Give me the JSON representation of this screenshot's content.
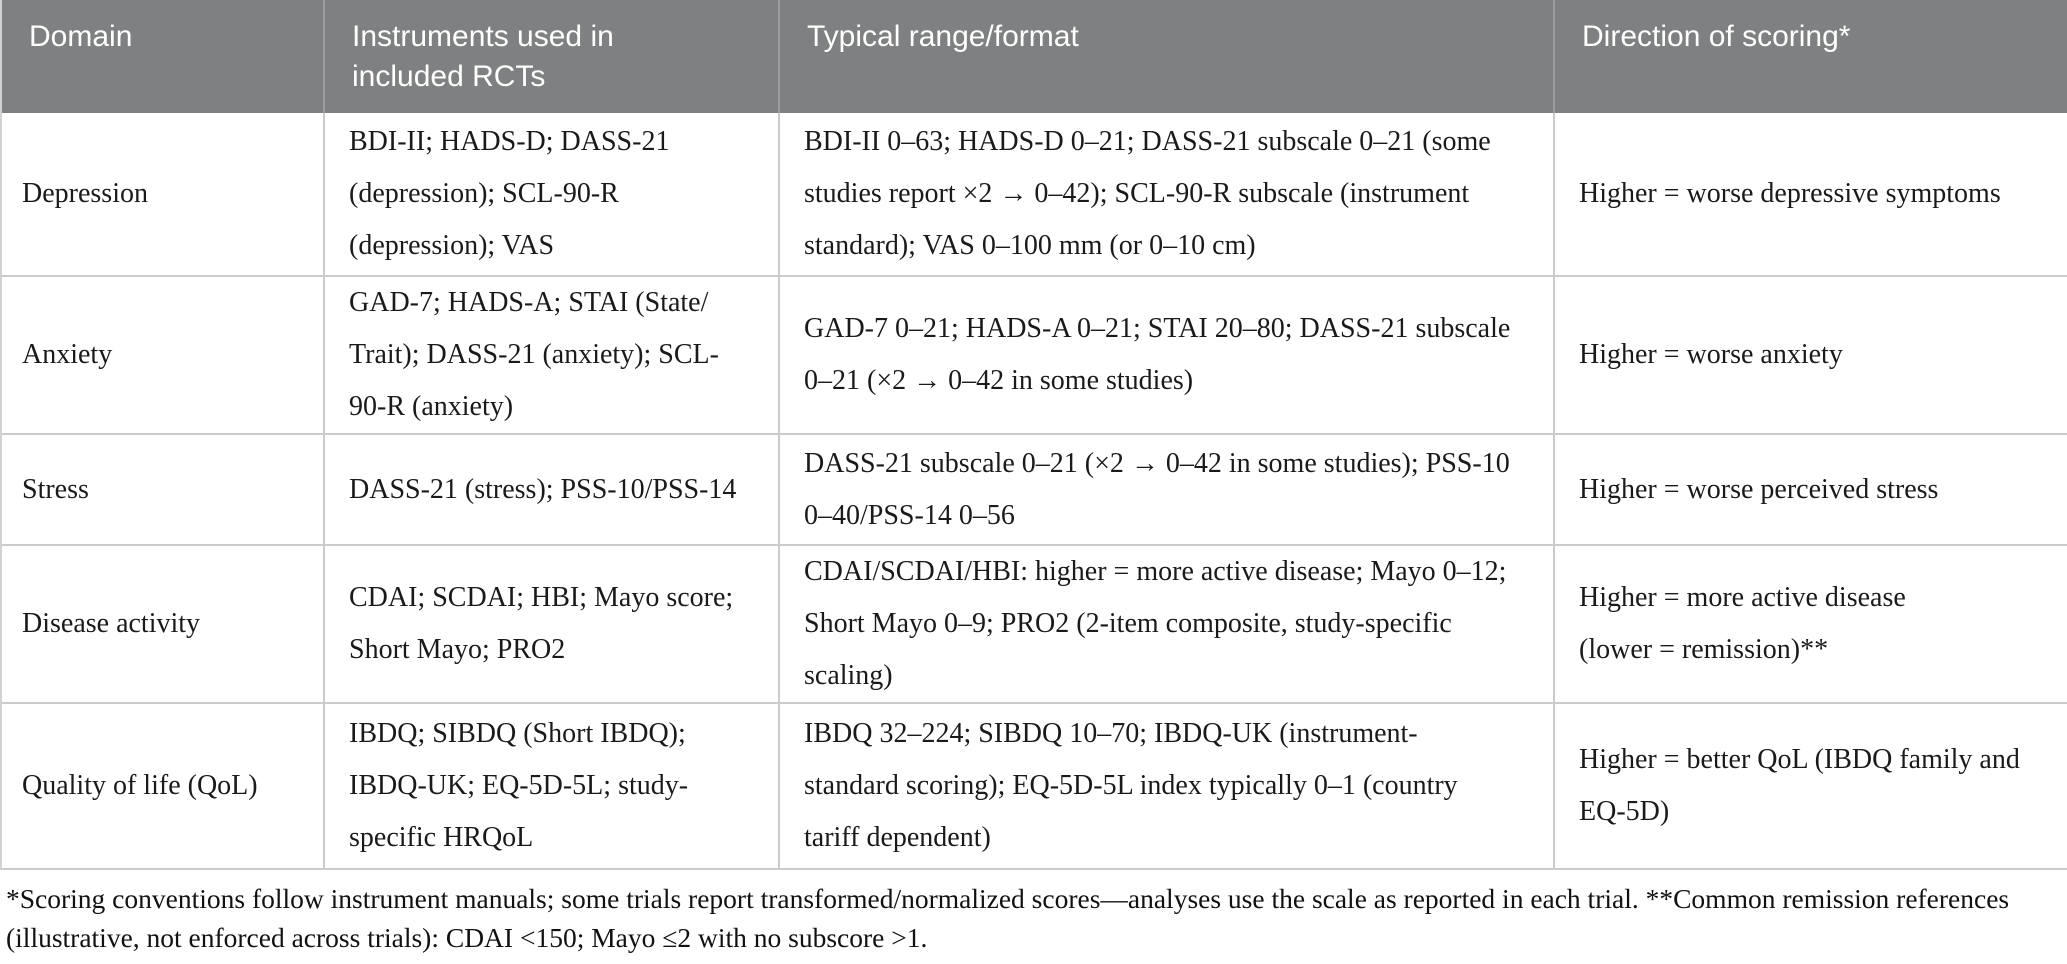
{
  "colors": {
    "header_background": "#7f8081",
    "header_text": "#ffffff",
    "header_divider": "#9b9c9d",
    "body_border": "#cbcbcb",
    "body_text": "#1a1a1a"
  },
  "table": {
    "columns": [
      {
        "label": "Domain"
      },
      {
        "label": "Instruments used in\nincluded RCTs"
      },
      {
        "label": "Typical range/format"
      },
      {
        "label": "Direction of scoring*"
      }
    ],
    "rows": [
      {
        "domain": "Depression",
        "instruments": "BDI-II; HADS-D; DASS-21\n(depression); SCL-90-R\n(depression); VAS",
        "range": "BDI-II 0–63; HADS-D 0–21; DASS-21 subscale 0–21 (some\nstudies report ×2 → 0–42); SCL-90-R subscale (instrument\nstandard); VAS 0–100 mm (or 0–10 cm)",
        "direction": "Higher = worse depressive symptoms"
      },
      {
        "domain": "Anxiety",
        "instruments": "GAD-7; HADS-A; STAI (State/\nTrait); DASS-21 (anxiety); SCL-\n90-R (anxiety)",
        "range": "GAD-7 0–21; HADS-A 0–21; STAI 20–80; DASS-21 subscale\n0–21 (×2 → 0–42 in some studies)",
        "direction": "Higher = worse anxiety"
      },
      {
        "domain": "Stress",
        "instruments": "DASS-21 (stress); PSS-10/PSS-14",
        "range": "DASS-21 subscale 0–21 (×2 → 0–42 in some studies); PSS-10\n0–40/PSS-14 0–56",
        "direction": "Higher = worse perceived stress"
      },
      {
        "domain": "Disease activity",
        "instruments": "CDAI; SCDAI; HBI; Mayo score;\nShort Mayo; PRO2",
        "range": "CDAI/SCDAI/HBI: higher = more active disease; Mayo 0–12;\nShort Mayo 0–9; PRO2 (2-item composite, study-specific\nscaling)",
        "direction": "Higher = more active disease\n(lower = remission)**"
      },
      {
        "domain": "Quality of life (QoL)",
        "instruments": "IBDQ; SIBDQ (Short IBDQ);\nIBDQ-UK; EQ-5D-5L; study-\nspecific HRQoL",
        "range": "IBDQ 32–224; SIBDQ 10–70; IBDQ-UK (instrument-\nstandard scoring); EQ-5D-5L index typically 0–1 (country\ntariff dependent)",
        "direction": "Higher = better QoL (IBDQ family and\nEQ-5D)"
      }
    ],
    "footnote": "*Scoring conventions follow instrument manuals; some trials report transformed/normalized scores—analyses use the scale as reported in each trial. **Common remission references\n(illustrative, not enforced across trials): CDAI <150; Mayo ≤2 with no subscore >1."
  }
}
